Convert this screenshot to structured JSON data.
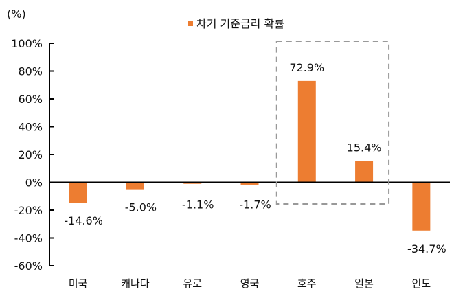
{
  "chart_data": {
    "type": "bar",
    "unit_label": "(%)",
    "categories": [
      "미국",
      "캐나다",
      "유로",
      "영국",
      "호주",
      "일본",
      "인도"
    ],
    "series": [
      {
        "name": "차기 기준금리 확률",
        "values": [
          -14.6,
          -5.0,
          -1.1,
          -1.7,
          72.9,
          15.4,
          -34.7
        ],
        "color": "#ED7D31"
      }
    ],
    "data_labels": [
      "-14.6%",
      "-5.0%",
      "-1.1%",
      "-1.7%",
      "72.9%",
      "15.4%",
      "-34.7%"
    ],
    "ylim": [
      -60,
      100
    ],
    "yticks": [
      100,
      80,
      60,
      40,
      20,
      0,
      -20,
      -40,
      -60
    ],
    "ytick_labels": [
      "100%",
      "80%",
      "60%",
      "40%",
      "20%",
      "0%",
      "-20%",
      "-40%",
      "-60%"
    ],
    "grid": false,
    "legend_position": "top-center",
    "highlight_box": {
      "categories": [
        "호주",
        "일본"
      ],
      "style": "dashed",
      "color": "#999999"
    }
  }
}
